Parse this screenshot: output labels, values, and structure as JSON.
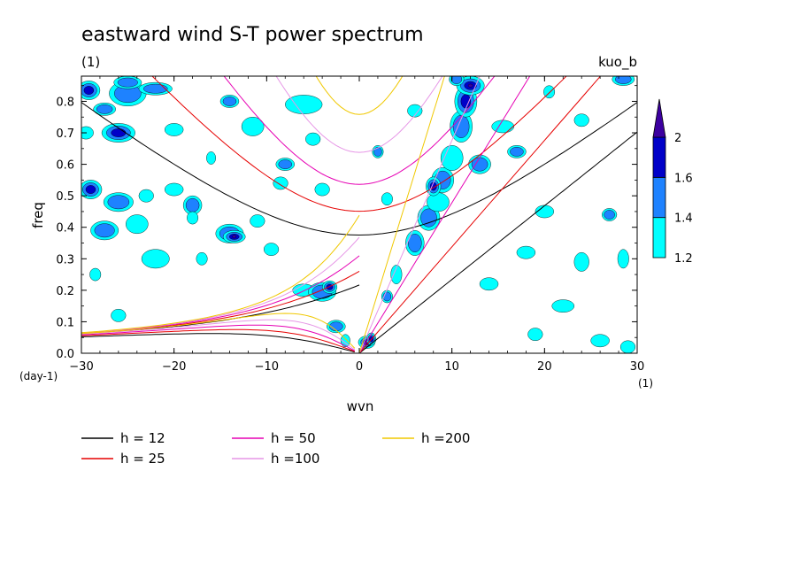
{
  "chart_data": {
    "type": "heatmap",
    "title": "eastward wind S-T power spectrum",
    "subtitle_left": "(1)",
    "subtitle_right": "kuo_b",
    "xlabel": "wvn",
    "ylabel": "freq",
    "x_unit": "(1)",
    "y_unit": "(day-1)",
    "xlim": [
      -30,
      30
    ],
    "ylim": [
      0,
      0.88
    ],
    "x_ticks": [
      {
        "value": -30,
        "label": "-30"
      },
      {
        "value": -20,
        "label": "-20"
      },
      {
        "value": -10,
        "label": "-10"
      },
      {
        "value": 0,
        "label": "0"
      },
      {
        "value": 10,
        "label": "10"
      },
      {
        "value": 20,
        "label": "20"
      },
      {
        "value": 30,
        "label": "30"
      }
    ],
    "y_ticks": [
      {
        "value": 0,
        "label": "0.0"
      },
      {
        "value": 0.1,
        "label": "0.1"
      },
      {
        "value": 0.2,
        "label": "0.2"
      },
      {
        "value": 0.3,
        "label": "0.3"
      },
      {
        "value": 0.4,
        "label": "0.4"
      },
      {
        "value": 0.5,
        "label": "0.5"
      },
      {
        "value": 0.6,
        "label": "0.6"
      },
      {
        "value": 0.7,
        "label": "0.7"
      },
      {
        "value": 0.8,
        "label": "0.8"
      }
    ],
    "colorbar": {
      "levels": [
        "1.2",
        "1.4",
        "1.6",
        "2"
      ],
      "colors": [
        "#00ffff",
        "#1e82ff",
        "#0000c8",
        "#3c00a0"
      ]
    },
    "dispersion_curves": [
      {
        "name": "h = 12",
        "h": 12,
        "color": "#000000"
      },
      {
        "name": "h = 25",
        "h": 25,
        "color": "#e60000"
      },
      {
        "name": "h = 50",
        "h": 50,
        "color": "#e600b4"
      },
      {
        "name": "h =100",
        "h": 100,
        "color": "#e696e6"
      },
      {
        "name": "h =200",
        "h": 200,
        "color": "#f0c800"
      }
    ],
    "blobs": [
      [
        -29.2,
        0.835,
        1.2,
        0.03,
        2
      ],
      [
        -27.5,
        0.775,
        1.2,
        0.02,
        1
      ],
      [
        -25,
        0.825,
        2,
        0.04,
        1
      ],
      [
        -22,
        0.84,
        1.8,
        0.02,
        1
      ],
      [
        -26,
        0.7,
        1.8,
        0.03,
        2
      ],
      [
        -29.5,
        0.7,
        0.8,
        0.02,
        0
      ],
      [
        -29,
        0.52,
        1.2,
        0.03,
        2
      ],
      [
        -26,
        0.48,
        1.6,
        0.03,
        1
      ],
      [
        -23,
        0.5,
        0.8,
        0.02,
        0
      ],
      [
        -27.5,
        0.39,
        1.5,
        0.03,
        1
      ],
      [
        -24,
        0.41,
        1.2,
        0.03,
        0
      ],
      [
        -20,
        0.52,
        1,
        0.02,
        0
      ],
      [
        -18,
        0.47,
        1,
        0.03,
        1
      ],
      [
        -14,
        0.38,
        1.5,
        0.03,
        1
      ],
      [
        -13.5,
        0.37,
        1.2,
        0.02,
        3
      ],
      [
        -11,
        0.42,
        0.8,
        0.02,
        0
      ],
      [
        -28.5,
        0.25,
        0.6,
        0.02,
        0
      ],
      [
        -22,
        0.3,
        1.5,
        0.03,
        0
      ],
      [
        -14,
        0.8,
        1,
        0.02,
        1
      ],
      [
        -11.5,
        0.72,
        1.2,
        0.03,
        0
      ],
      [
        -16,
        0.62,
        0.5,
        0.02,
        0
      ],
      [
        -8,
        0.6,
        1,
        0.02,
        1
      ],
      [
        -5,
        0.68,
        0.8,
        0.02,
        0
      ],
      [
        -6,
        0.79,
        2,
        0.03,
        0
      ],
      [
        -4,
        0.52,
        0.8,
        0.02,
        0
      ],
      [
        -6,
        0.2,
        1.2,
        0.02,
        0
      ],
      [
        -4,
        0.195,
        1.5,
        0.03,
        1
      ],
      [
        -3.2,
        0.21,
        0.8,
        0.02,
        2
      ],
      [
        -2.5,
        0.085,
        1,
        0.02,
        1
      ],
      [
        -1.5,
        0.04,
        0.5,
        0.02,
        0
      ],
      [
        -9.5,
        0.33,
        0.8,
        0.02,
        0
      ],
      [
        -25,
        0.86,
        1.5,
        0.02,
        1
      ],
      [
        -20,
        0.71,
        1,
        0.02,
        0
      ],
      [
        0.8,
        0.035,
        0.9,
        0.02,
        3
      ],
      [
        1.3,
        0.045,
        0.5,
        0.02,
        2
      ],
      [
        3,
        0.18,
        0.6,
        0.02,
        1
      ],
      [
        4,
        0.25,
        0.6,
        0.03,
        0
      ],
      [
        6,
        0.35,
        1,
        0.04,
        1
      ],
      [
        7.5,
        0.43,
        1.2,
        0.04,
        1
      ],
      [
        8.5,
        0.48,
        1.2,
        0.03,
        0
      ],
      [
        9,
        0.55,
        1.2,
        0.04,
        1
      ],
      [
        10,
        0.62,
        1.2,
        0.04,
        0
      ],
      [
        11,
        0.72,
        1.2,
        0.05,
        1
      ],
      [
        11.5,
        0.8,
        1.2,
        0.05,
        2
      ],
      [
        12,
        0.85,
        1.5,
        0.03,
        3
      ],
      [
        10.5,
        0.87,
        0.8,
        0.02,
        1
      ],
      [
        8,
        0.53,
        0.8,
        0.03,
        2
      ],
      [
        13,
        0.6,
        1.2,
        0.03,
        1
      ],
      [
        15.5,
        0.72,
        1.2,
        0.02,
        0
      ],
      [
        17,
        0.64,
        1,
        0.02,
        1
      ],
      [
        20,
        0.45,
        1,
        0.02,
        0
      ],
      [
        18,
        0.32,
        1,
        0.02,
        0
      ],
      [
        24,
        0.29,
        0.8,
        0.03,
        0
      ],
      [
        27,
        0.44,
        0.8,
        0.02,
        1
      ],
      [
        28.5,
        0.3,
        0.6,
        0.03,
        0
      ],
      [
        22,
        0.15,
        1.2,
        0.02,
        0
      ],
      [
        26,
        0.04,
        1,
        0.02,
        0
      ],
      [
        19,
        0.06,
        0.8,
        0.02,
        0
      ],
      [
        29,
        0.02,
        0.8,
        0.02,
        0
      ],
      [
        14,
        0.22,
        1,
        0.02,
        0
      ],
      [
        28.5,
        0.87,
        1.2,
        0.02,
        1
      ],
      [
        24,
        0.74,
        0.8,
        0.02,
        0
      ],
      [
        6,
        0.77,
        0.8,
        0.02,
        0
      ],
      [
        2,
        0.64,
        0.6,
        0.02,
        1
      ],
      [
        -8.5,
        0.54,
        0.8,
        0.02,
        0
      ],
      [
        -17,
        0.3,
        0.6,
        0.02,
        0
      ],
      [
        -26,
        0.12,
        0.8,
        0.02,
        0
      ],
      [
        -18,
        0.43,
        0.6,
        0.02,
        0
      ],
      [
        3,
        0.49,
        0.6,
        0.02,
        0
      ],
      [
        20.5,
        0.83,
        0.6,
        0.02,
        0
      ]
    ]
  },
  "legend": {
    "items": [
      {
        "label": "h = 12",
        "color": "#000000"
      },
      {
        "label": "h = 25",
        "color": "#e60000"
      },
      {
        "label": "h = 50",
        "color": "#e600b4"
      },
      {
        "label": "h =100",
        "color": "#e696e6"
      },
      {
        "label": "h =200",
        "color": "#f0c800"
      }
    ]
  }
}
